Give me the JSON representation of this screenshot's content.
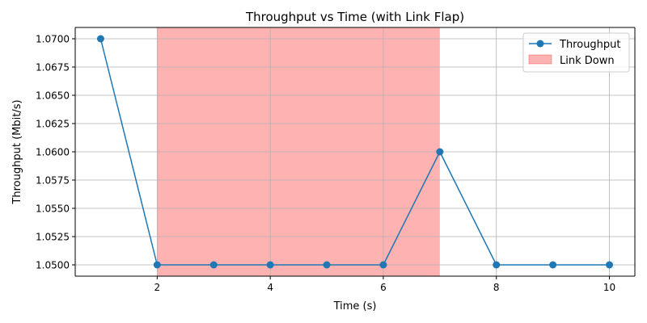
{
  "chart_data": {
    "type": "line",
    "title": "Throughput vs Time (with Link Flap)",
    "xlabel": "Time (s)",
    "ylabel": "Throughput (Mbit/s)",
    "xlim": [
      0.55,
      10.45
    ],
    "ylim": [
      1.049,
      1.071
    ],
    "xticks": [
      2,
      4,
      6,
      8,
      10
    ],
    "xtick_labels": [
      "2",
      "4",
      "6",
      "8",
      "10"
    ],
    "yticks": [
      1.05,
      1.0525,
      1.055,
      1.0575,
      1.06,
      1.0625,
      1.065,
      1.0675,
      1.07
    ],
    "ytick_labels": [
      "1.0500",
      "1.0525",
      "1.0550",
      "1.0575",
      "1.0600",
      "1.0625",
      "1.0650",
      "1.0675",
      "1.0700"
    ],
    "grid": true,
    "legend_position": "upper right",
    "series": [
      {
        "name": "Throughput",
        "color": "#1f77b4",
        "marker": "circle",
        "x": [
          1,
          2,
          3,
          4,
          5,
          6,
          7,
          8,
          9,
          10
        ],
        "y": [
          1.07,
          1.05,
          1.05,
          1.05,
          1.05,
          1.05,
          1.06,
          1.05,
          1.05,
          1.05
        ]
      }
    ],
    "spans": [
      {
        "name": "Link Down",
        "x_start": 2,
        "x_end": 7,
        "color": "#ff0000",
        "opacity": 0.3
      }
    ]
  }
}
